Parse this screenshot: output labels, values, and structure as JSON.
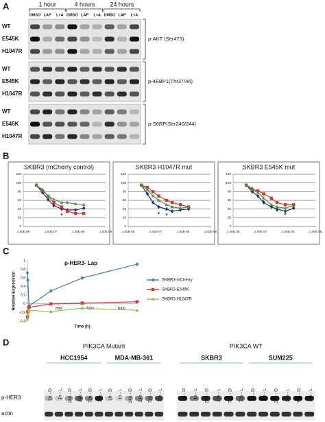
{
  "panel_a": {
    "label": "A",
    "time_points": [
      "1 hour",
      "4 hours",
      "24 hours"
    ],
    "lanes": [
      "DMSO",
      "LAP",
      "L+A"
    ],
    "groups": [
      {
        "rows": [
          "WT",
          "E545K",
          "H1047R"
        ],
        "antibody": "p-AKT (Ser473)"
      },
      {
        "rows": [
          "WT",
          "E545K",
          "H1047R"
        ],
        "antibody": "p-4EBP1(Thr37/46)"
      },
      {
        "rows": [
          "WT",
          "E545K",
          "H1047R"
        ],
        "antibody": "p-S6RP(Ser240/244)"
      }
    ]
  },
  "panel_b": {
    "label": "B"
  },
  "panel_c": {
    "label": "C"
  },
  "panel_d": {
    "label": "D",
    "groups": [
      {
        "title": "PIK3CA Mutant",
        "cell_lines": [
          "HCC1954",
          "MDA-MB-361"
        ]
      },
      {
        "title": "PIK3CA WT",
        "cell_lines": [
          "SKBR3",
          "SUM225"
        ]
      }
    ],
    "lanes": [
      "1h - D",
      "1h - L",
      "24h - D",
      "24h - L",
      "72h - D",
      "72h - L"
    ],
    "rows": [
      "p-HER3",
      "actin"
    ]
  },
  "chart_data": [
    {
      "type": "line",
      "title": "SKBR3 (mCherry control)",
      "xscale": "log",
      "x": [
        3e-08,
        5e-08,
        8e-08,
        1.3e-07,
        2.5e-07,
        4e-07,
        8e-07,
        1.6e-06
      ],
      "xlim": [
        1e-08,
        1e-05
      ],
      "xticks": [
        {
          "value": 1e-08,
          "label": "1.00E-08"
        },
        {
          "value": 1e-07,
          "label": "1.00E-07"
        },
        {
          "value": 1e-06,
          "label": "1.00E-06"
        },
        {
          "value": 1e-05,
          "label": "1.00E-05"
        }
      ],
      "ylim": [
        0,
        120
      ],
      "yticks": [
        0,
        20,
        40,
        60,
        80,
        100,
        120
      ],
      "grid": true,
      "series": [
        {
          "color": "#1f2d8c",
          "marker": "diamond",
          "values": [
            95,
            78,
            62,
            48,
            40,
            38,
            38,
            42
          ]
        },
        {
          "color": "#e0302a",
          "marker": "square",
          "values": [
            95,
            82,
            70,
            55,
            45,
            35,
            30,
            30
          ]
        },
        {
          "color": "#3f9a3a",
          "marker": "triangle",
          "values": [
            95,
            85,
            70,
            62,
            55,
            55,
            52,
            50
          ]
        }
      ],
      "annotations": [
        {
          "text": "*",
          "x": 2.5e-07,
          "y": 27
        }
      ]
    },
    {
      "type": "line",
      "title": "SKBR3 H1047R mut",
      "xscale": "log",
      "x": [
        3e-08,
        5e-08,
        8e-08,
        1.3e-07,
        2.5e-07,
        4e-07,
        8e-07,
        1.6e-06
      ],
      "xlim": [
        1e-08,
        1e-05
      ],
      "xticks": [
        {
          "value": 1e-08,
          "label": "1.00E-08"
        },
        {
          "value": 1e-07,
          "label": "1.00E-07"
        },
        {
          "value": 1e-06,
          "label": "1.00E-06"
        },
        {
          "value": 1e-05,
          "label": "1.00E-05"
        }
      ],
      "ylim": [
        0,
        120
      ],
      "yticks": [
        0,
        20,
        40,
        60,
        80,
        100,
        120
      ],
      "grid": true,
      "series": [
        {
          "color": "#1f2d8c",
          "marker": "diamond",
          "values": [
            95,
            75,
            55,
            45,
            40,
            35,
            38,
            40
          ]
        },
        {
          "color": "#e0302a",
          "marker": "square",
          "values": [
            95,
            90,
            80,
            70,
            60,
            55,
            50,
            45
          ]
        },
        {
          "color": "#3f9a3a",
          "marker": "triangle",
          "values": [
            95,
            85,
            70,
            60,
            50,
            45,
            42,
            45
          ]
        }
      ],
      "annotations": [
        {
          "text": "*",
          "x": 1.3e-07,
          "y": 30
        },
        {
          "text": "*",
          "x": 2.5e-07,
          "y": 27
        }
      ]
    },
    {
      "type": "line",
      "title": "SKBR3 E545K mut",
      "xscale": "log",
      "x": [
        3e-08,
        5e-08,
        8e-08,
        1.3e-07,
        2.5e-07,
        4e-07,
        8e-07,
        1.6e-06
      ],
      "xlim": [
        1e-08,
        1e-05
      ],
      "xticks": [
        {
          "value": 1e-08,
          "label": "1.00E-08"
        },
        {
          "value": 1e-07,
          "label": "1.00E-07"
        },
        {
          "value": 1e-06,
          "label": "1.00E-06"
        },
        {
          "value": 1e-05,
          "label": "1.00E-05"
        }
      ],
      "ylim": [
        0,
        120
      ],
      "yticks": [
        0,
        20,
        40,
        60,
        80,
        100,
        120
      ],
      "grid": true,
      "series": [
        {
          "color": "#1f2d8c",
          "marker": "diamond",
          "values": [
            95,
            80,
            70,
            55,
            45,
            40,
            35,
            42
          ]
        },
        {
          "color": "#e0302a",
          "marker": "square",
          "values": [
            95,
            85,
            82,
            75,
            65,
            55,
            50,
            50
          ]
        },
        {
          "color": "#3f9a3a",
          "marker": "triangle",
          "values": [
            95,
            88,
            78,
            65,
            50,
            45,
            42,
            48
          ]
        }
      ],
      "annotations": [
        {
          "text": "*",
          "x": 1.3e-07,
          "y": 56
        },
        {
          "text": "*",
          "x": 4e-07,
          "y": 36
        },
        {
          "text": "*",
          "x": 8e-07,
          "y": 28
        }
      ]
    },
    {
      "type": "line",
      "title": "p-HER3- Lap",
      "xlabel": "Time (h)",
      "ylabel": "Relative Expression",
      "x": [
        0,
        30,
        100,
        1500,
        3500,
        7000
      ],
      "xlim": [
        0,
        7000
      ],
      "xticks": [
        2000,
        4000,
        6000
      ],
      "ylim": [
        -0.4,
        1
      ],
      "yticks": [
        -0.4,
        -0.2,
        0,
        0.2,
        0.4,
        0.6,
        0.8,
        1
      ],
      "grid": false,
      "legend": "right",
      "series": [
        {
          "name": "SKBR3-mCherry",
          "color": "#3b78c4",
          "marker": "diamond",
          "values": [
            0.72,
            0.55,
            -0.05,
            0.3,
            0.6,
            0.92
          ]
        },
        {
          "name": "SKBR3-E545K",
          "color": "#d93a36",
          "marker": "square",
          "values": [
            -0.3,
            -0.18,
            -0.08,
            0,
            0.02,
            0.05
          ]
        },
        {
          "name": "SKBR3-H1047R",
          "color": "#8fc24a",
          "marker": "triangle",
          "values": [
            -0.35,
            -0.25,
            -0.15,
            -0.18,
            -0.1,
            -0.15
          ]
        }
      ]
    }
  ]
}
